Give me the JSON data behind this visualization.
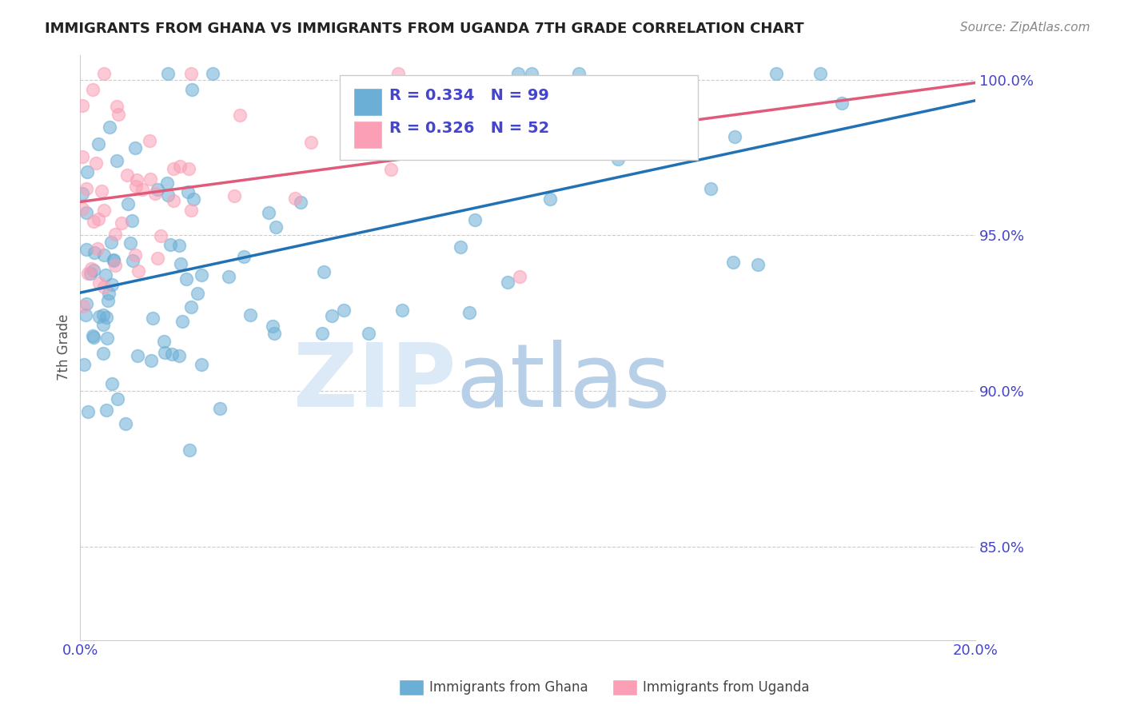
{
  "title": "IMMIGRANTS FROM GHANA VS IMMIGRANTS FROM UGANDA 7TH GRADE CORRELATION CHART",
  "source": "Source: ZipAtlas.com",
  "ylabel": "7th Grade",
  "legend_ghana": "Immigrants from Ghana",
  "legend_uganda": "Immigrants from Uganda",
  "R_ghana": 0.334,
  "N_ghana": 99,
  "R_uganda": 0.326,
  "N_uganda": 52,
  "color_ghana": "#6baed6",
  "color_uganda": "#fa9fb5",
  "color_ghana_line": "#2171b5",
  "color_uganda_line": "#e05a7a",
  "watermark_zip": "ZIP",
  "watermark_atlas": "atlas",
  "xlim": [
    0.0,
    0.2
  ],
  "ylim": [
    0.82,
    1.008
  ],
  "ytick_vals": [
    0.85,
    0.9,
    0.95,
    1.0
  ],
  "ytick_labels": [
    "85.0%",
    "90.0%",
    "95.0%",
    "100.0%"
  ],
  "xtick_vals": [
    0.0,
    0.2
  ],
  "xtick_labels": [
    "0.0%",
    "20.0%"
  ],
  "background_color": "#ffffff",
  "grid_color": "#cccccc",
  "title_color": "#222222",
  "axis_label_color": "#4444cc",
  "watermark_color": "#dce9f7"
}
